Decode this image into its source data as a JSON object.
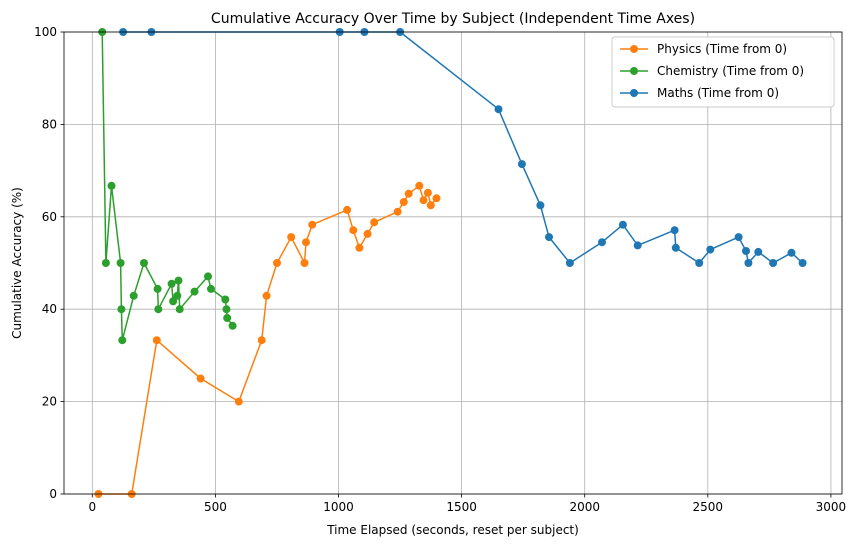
{
  "chart_data": {
    "type": "line",
    "title": "Cumulative Accuracy Over Time by Subject (Independent Time Axes)",
    "xlabel": "Time Elapsed (seconds, reset per subject)",
    "ylabel": "Cumulative Accuracy (%)",
    "xlim": [
      -115,
      3045
    ],
    "ylim": [
      0,
      100
    ],
    "xticks": [
      0,
      500,
      1000,
      1500,
      2000,
      2500,
      3000
    ],
    "yticks": [
      0,
      20,
      40,
      60,
      80,
      100
    ],
    "grid": true,
    "legend_position": "top-right",
    "series": [
      {
        "name": "Physics (Time from 0)",
        "color": "#ff7f0e",
        "x": [
          25,
          160,
          262,
          440,
          595,
          688,
          708,
          750,
          808,
          862,
          868,
          893,
          1035,
          1060,
          1085,
          1118,
          1145,
          1240,
          1265,
          1285,
          1328,
          1345,
          1363,
          1375,
          1398
        ],
        "y": [
          0,
          0,
          33.3,
          25,
          20,
          33.3,
          42.9,
          50,
          55.6,
          50,
          54.5,
          58.3,
          61.5,
          57.1,
          53.3,
          56.3,
          58.8,
          61.1,
          63.2,
          65,
          66.7,
          63.6,
          65.2,
          62.5,
          64
        ]
      },
      {
        "name": "Chemistry (Time from 0)",
        "color": "#2ca02c",
        "x": [
          40,
          55,
          78,
          115,
          118,
          122,
          168,
          210,
          265,
          268,
          322,
          328,
          345,
          350,
          355,
          415,
          470,
          482,
          540,
          545,
          548,
          570
        ],
        "y": [
          100,
          50,
          66.7,
          50,
          40,
          33.3,
          42.9,
          50,
          44.4,
          40,
          45.5,
          41.7,
          42.9,
          46.2,
          40,
          43.8,
          47.1,
          44.4,
          42.1,
          40,
          38.1,
          36.4
        ]
      },
      {
        "name": "Maths (Time from 0)",
        "color": "#1f77b4",
        "x": [
          125,
          240,
          1005,
          1105,
          1250,
          1650,
          1745,
          1820,
          1855,
          1940,
          2070,
          2155,
          2215,
          2365,
          2370,
          2465,
          2510,
          2625,
          2655,
          2665,
          2705,
          2765,
          2840,
          2885
        ],
        "y": [
          100,
          100,
          100,
          100,
          100,
          83.3,
          71.4,
          62.5,
          55.6,
          50,
          54.5,
          58.3,
          53.8,
          57.1,
          53.3,
          50,
          52.9,
          55.6,
          52.6,
          50,
          52.4,
          50,
          52.2,
          50
        ]
      }
    ]
  }
}
